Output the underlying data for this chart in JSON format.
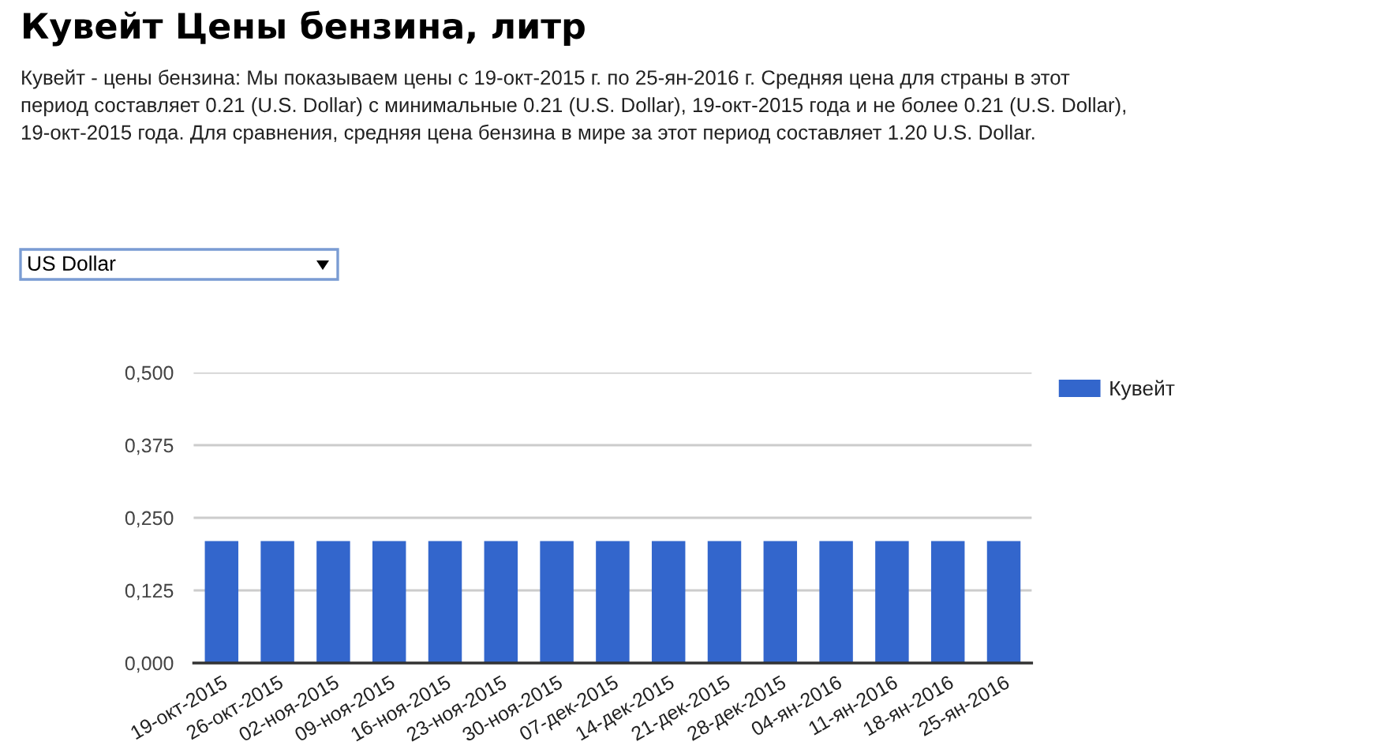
{
  "chart_data": {
    "type": "bar",
    "title": "Кувейт Цены бензина, литр",
    "subtitle": "Кувейт - цены бензина: Мы показываем цены с 19-окт-2015 г. по 25-ян-2016 г. Средняя цена для страны в этот период составляет 0.21 (U.S. Dollar) с минимальные 0.21 (U.S. Dollar), 19-окт-2015 года и не более 0.21 (U.S. Dollar), 19-окт-2015 года. Для сравнения, средняя цена бензина в мире за этот период составляет 1.20 U.S. Dollar.",
    "annotations": [
      "US Dollar"
    ],
    "categories": [
      "19-окт-2015",
      "26-окт-2015",
      "02-ноя-2015",
      "09-ноя-2015",
      "16-ноя-2015",
      "23-ноя-2015",
      "30-ноя-2015",
      "07-дек-2015",
      "14-дек-2015",
      "21-дек-2015",
      "28-дек-2015",
      "04-ян-2016",
      "11-ян-2016",
      "18-ян-2016",
      "25-ян-2016"
    ],
    "series": [
      {
        "name": "Кувейт",
        "color": "#3366cc",
        "values": [
          0.21,
          0.21,
          0.21,
          0.21,
          0.21,
          0.21,
          0.21,
          0.21,
          0.21,
          0.21,
          0.21,
          0.21,
          0.21,
          0.21,
          0.21
        ]
      }
    ],
    "ylim": [
      0,
      0.5
    ],
    "yticks": [
      {
        "value": 0,
        "label": "0,000"
      },
      {
        "value": 0.125,
        "label": "0,125"
      },
      {
        "value": 0.25,
        "label": "0,250"
      },
      {
        "value": 0.375,
        "label": "0,375"
      },
      {
        "value": 0.5,
        "label": "0,500"
      }
    ],
    "grid": "y",
    "legend": "top right"
  }
}
